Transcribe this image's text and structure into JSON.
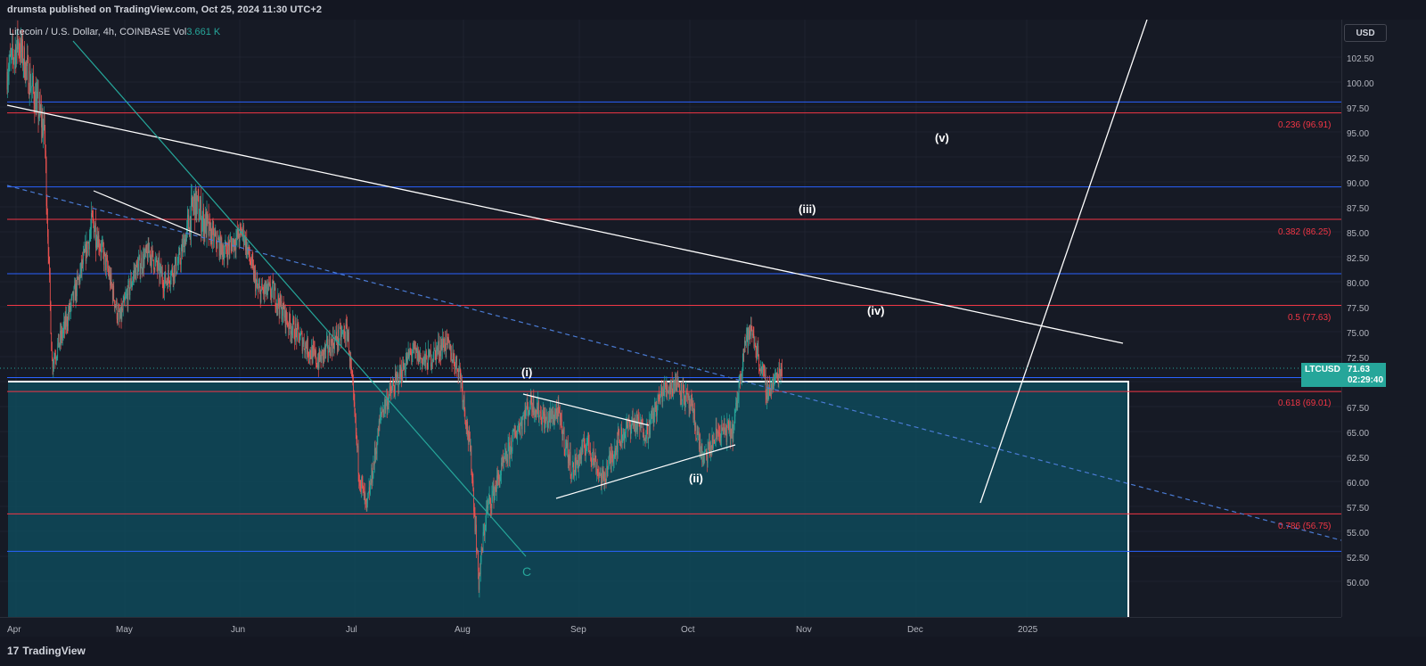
{
  "header": {
    "published": "drumsta published on TradingView.com, Oct 25, 2024 11:30 UTC+2"
  },
  "legend": {
    "symbol": "Litecoin / U.S. Dollar, 4h, COINBASE",
    "vol_label": "Vol",
    "vol_value": "3.661 K"
  },
  "currency": "USD",
  "price_tag": {
    "symbol": "LTCUSD",
    "price": "71.63",
    "countdown": "02:29:40",
    "color": "#26a69a"
  },
  "footer": {
    "logo": "17",
    "brand": "TradingView"
  },
  "colors": {
    "up": "#26a69a",
    "down": "#ef5350",
    "fib": "#f23645",
    "sr": "#2962ff",
    "box": "#0e4a5a",
    "trendline": "#ffffff",
    "c_line": "#26a69a"
  },
  "chart_data": {
    "type": "candlestick",
    "y_ticks": [
      "102.50",
      "100.00",
      "97.50",
      "95.00",
      "92.50",
      "90.00",
      "87.50",
      "85.00",
      "82.50",
      "80.00",
      "77.50",
      "75.00",
      "72.50",
      "70.00",
      "67.50",
      "65.00",
      "62.50",
      "60.00",
      "57.50",
      "55.00",
      "52.50",
      "50.00"
    ],
    "ylim": [
      48.5,
      105
    ],
    "x_ticks": [
      "Apr",
      "May",
      "Jun",
      "Jul",
      "Aug",
      "Sep",
      "Oct",
      "Nov",
      "Dec",
      "2025"
    ],
    "fib_levels": [
      {
        "label": "0.236 (96.91)",
        "value": 96.91
      },
      {
        "label": "0.382 (86.25)",
        "value": 86.25
      },
      {
        "label": "0.5 (77.63)",
        "value": 77.63
      },
      {
        "label": "0.618 (69.01)",
        "value": 69.01
      },
      {
        "label": "0.786 (56.75)",
        "value": 56.75
      }
    ],
    "blue_levels": [
      98.0,
      89.5,
      80.8,
      70.4,
      53.0
    ],
    "last_price": 71.63,
    "wave_labels": [
      "(i)",
      "(ii)",
      "(iii)",
      "(iv)",
      "(v)",
      "C"
    ],
    "price_path": [
      [
        "2024-04-01",
        101
      ],
      [
        "2024-04-04",
        104
      ],
      [
        "2024-04-08",
        99
      ],
      [
        "2024-04-11",
        95
      ],
      [
        "2024-04-13",
        72
      ],
      [
        "2024-04-16",
        75
      ],
      [
        "2024-04-20",
        80
      ],
      [
        "2024-04-24",
        86
      ],
      [
        "2024-04-28",
        81
      ],
      [
        "2024-05-01",
        76
      ],
      [
        "2024-05-05",
        81
      ],
      [
        "2024-05-09",
        83
      ],
      [
        "2024-05-13",
        80
      ],
      [
        "2024-05-17",
        82
      ],
      [
        "2024-05-21",
        88
      ],
      [
        "2024-05-25",
        85
      ],
      [
        "2024-05-29",
        83
      ],
      [
        "2024-06-03",
        85
      ],
      [
        "2024-06-07",
        79
      ],
      [
        "2024-06-11",
        79
      ],
      [
        "2024-06-15",
        76
      ],
      [
        "2024-06-19",
        74
      ],
      [
        "2024-06-23",
        72
      ],
      [
        "2024-06-27",
        74
      ],
      [
        "2024-07-01",
        75
      ],
      [
        "2024-07-04",
        61
      ],
      [
        "2024-07-06",
        57
      ],
      [
        "2024-07-10",
        67
      ],
      [
        "2024-07-14",
        70
      ],
      [
        "2024-07-18",
        73
      ],
      [
        "2024-07-22",
        72
      ],
      [
        "2024-07-27",
        74
      ],
      [
        "2024-07-31",
        71
      ],
      [
        "2024-08-03",
        62
      ],
      [
        "2024-08-05",
        50
      ],
      [
        "2024-08-07",
        57
      ],
      [
        "2024-08-11",
        61
      ],
      [
        "2024-08-15",
        65
      ],
      [
        "2024-08-19",
        68
      ],
      [
        "2024-08-23",
        66
      ],
      [
        "2024-08-26",
        67
      ],
      [
        "2024-08-30",
        61
      ],
      [
        "2024-09-03",
        64
      ],
      [
        "2024-09-07",
        60
      ],
      [
        "2024-09-11",
        64
      ],
      [
        "2024-09-15",
        66
      ],
      [
        "2024-09-19",
        65
      ],
      [
        "2024-09-23",
        69
      ],
      [
        "2024-09-27",
        70
      ],
      [
        "2024-10-01",
        67
      ],
      [
        "2024-10-04",
        62
      ],
      [
        "2024-10-08",
        65
      ],
      [
        "2024-10-12",
        65
      ],
      [
        "2024-10-15",
        74
      ],
      [
        "2024-10-17",
        75
      ],
      [
        "2024-10-21",
        69
      ],
      [
        "2024-10-23",
        70
      ],
      [
        "2024-10-25",
        71.63
      ]
    ]
  }
}
